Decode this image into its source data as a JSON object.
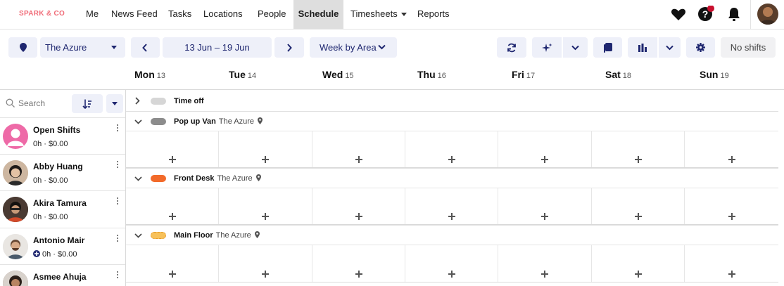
{
  "brand": "SPARK & CO",
  "nav": [
    "Me",
    "News Feed",
    "Tasks",
    "Locations",
    "People",
    "Schedule",
    "Timesheets",
    "Reports"
  ],
  "nav_active": "Schedule",
  "notification_dot_color": "#c8102e",
  "toolbar": {
    "location": "The Azure",
    "date_range": "13 Jun – 19 Jun",
    "view": "Week by Area",
    "shifts_status": "No shifts"
  },
  "days": [
    {
      "name": "Mon",
      "date": "13"
    },
    {
      "name": "Tue",
      "date": "14"
    },
    {
      "name": "Wed",
      "date": "15"
    },
    {
      "name": "Thu",
      "date": "16"
    },
    {
      "name": "Fri",
      "date": "17"
    },
    {
      "name": "Sat",
      "date": "18"
    },
    {
      "name": "Sun",
      "date": "19"
    }
  ],
  "search_placeholder": "Search",
  "people": [
    {
      "name": "Open Shifts",
      "stats": "0h · $0.00"
    },
    {
      "name": "Abby Huang",
      "stats": "0h · $0.00"
    },
    {
      "name": "Akira Tamura",
      "stats": "0h · $0.00"
    },
    {
      "name": "Antonio Mair",
      "stats": "0h · $0.00"
    },
    {
      "name": "Asmee Ahuja",
      "stats": ""
    }
  ],
  "areas": [
    {
      "name": "Time off",
      "location": "",
      "color": "#d6d6d6"
    },
    {
      "name": "Pop up Van",
      "location": "The Azure",
      "color": "#8c8c8c"
    },
    {
      "name": "Front Desk",
      "location": "The Azure",
      "color": "#f26a2a"
    },
    {
      "name": "Main Floor",
      "location": "The Azure",
      "color": "#f7c15a"
    }
  ]
}
